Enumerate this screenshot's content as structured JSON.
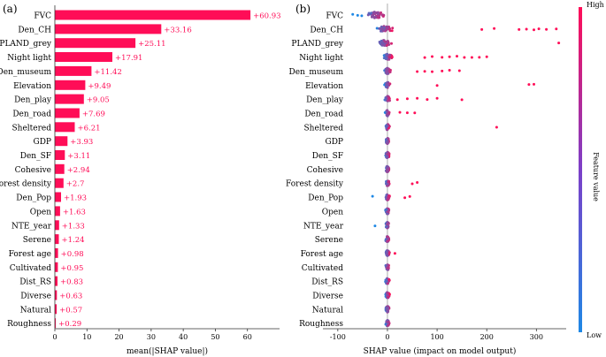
{
  "colors": {
    "bar": "#ff0d57",
    "low": "#1e88e5",
    "high": "#ff0d57",
    "value_label": "#ff0d57",
    "axis": "#333333"
  },
  "chart_data": [
    {
      "panel_label": "(a)",
      "type": "bar",
      "orientation": "horizontal",
      "categories": [
        "FVC",
        "Den_CH",
        "PLAND_grey",
        "Night light",
        "Den_museum",
        "Elevation",
        "Den_play",
        "Den_road",
        "Sheltered",
        "GDP",
        "Den_SF",
        "Cohesive",
        "Forest density",
        "Den_Pop",
        "Open",
        "NTE_year",
        "Serene",
        "Forest age",
        "Cultivated",
        "Dist_RS",
        "Diverse",
        "Natural",
        "Roughness"
      ],
      "values": [
        60.93,
        33.16,
        25.11,
        17.91,
        11.42,
        9.49,
        9.05,
        7.69,
        6.21,
        3.93,
        3.11,
        2.94,
        2.7,
        1.93,
        1.63,
        1.33,
        1.24,
        0.98,
        0.95,
        0.83,
        0.63,
        0.57,
        0.29
      ],
      "value_labels": [
        "+60.93",
        "+33.16",
        "+25.11",
        "+17.91",
        "+11.42",
        "+9.49",
        "+9.05",
        "+7.69",
        "+6.21",
        "+3.93",
        "+3.11",
        "+2.94",
        "+2.7",
        "+1.93",
        "+1.63",
        "+1.33",
        "+1.24",
        "+0.98",
        "+0.95",
        "+0.83",
        "+0.63",
        "+0.57",
        "+0.29"
      ],
      "xlim": [
        0,
        70
      ],
      "xticks": [
        0,
        10,
        20,
        30,
        40,
        50,
        60
      ],
      "xlabel": "mean(|SHAP value|)"
    },
    {
      "panel_label": "(b)",
      "type": "scatter",
      "subtype": "beeswarm",
      "categories": [
        "FVC",
        "Den_CH",
        "PLAND_grey",
        "Night light",
        "Den_museum",
        "Elevation",
        "Den_play",
        "Den_road",
        "Sheltered",
        "GDP",
        "Den_SF",
        "Cohesive",
        "Forest density",
        "Den_Pop",
        "Open",
        "NTE_year",
        "Serene",
        "Forest age",
        "Cultivated",
        "Dist_RS",
        "Diverse",
        "Natural",
        "Roughness"
      ],
      "xlim": [
        -130,
        360
      ],
      "xticks": [
        -100,
        0,
        100,
        200,
        300
      ],
      "xlabel": "SHAP value (impact on model output)",
      "colorbar": {
        "label": "Feature value",
        "high": "High",
        "low": "Low"
      },
      "outliers": [
        {
          "feature": 0,
          "values": [
            -70,
            -60
          ]
        },
        {
          "feature": 1,
          "values": [
            190,
            215,
            265,
            280,
            295,
            305,
            320,
            340
          ]
        },
        {
          "feature": 2,
          "values": [
            345
          ]
        },
        {
          "feature": 3,
          "values": [
            75,
            90,
            110,
            125,
            140,
            155,
            170,
            185,
            200
          ]
        },
        {
          "feature": 4,
          "values": [
            60,
            75,
            90,
            110,
            125,
            145
          ]
        },
        {
          "feature": 5,
          "values": [
            100,
            285,
            295
          ]
        },
        {
          "feature": 6,
          "values": [
            20,
            40,
            60,
            80,
            100,
            150
          ]
        },
        {
          "feature": 7,
          "values": [
            25,
            40,
            55
          ]
        },
        {
          "feature": 8,
          "values": [
            220
          ]
        },
        {
          "feature": 12,
          "values": [
            50,
            60
          ]
        },
        {
          "feature": 13,
          "values": [
            -30,
            35,
            45
          ]
        },
        {
          "feature": 15,
          "values": [
            -25
          ]
        },
        {
          "feature": 17,
          "values": [
            15
          ]
        }
      ]
    }
  ]
}
